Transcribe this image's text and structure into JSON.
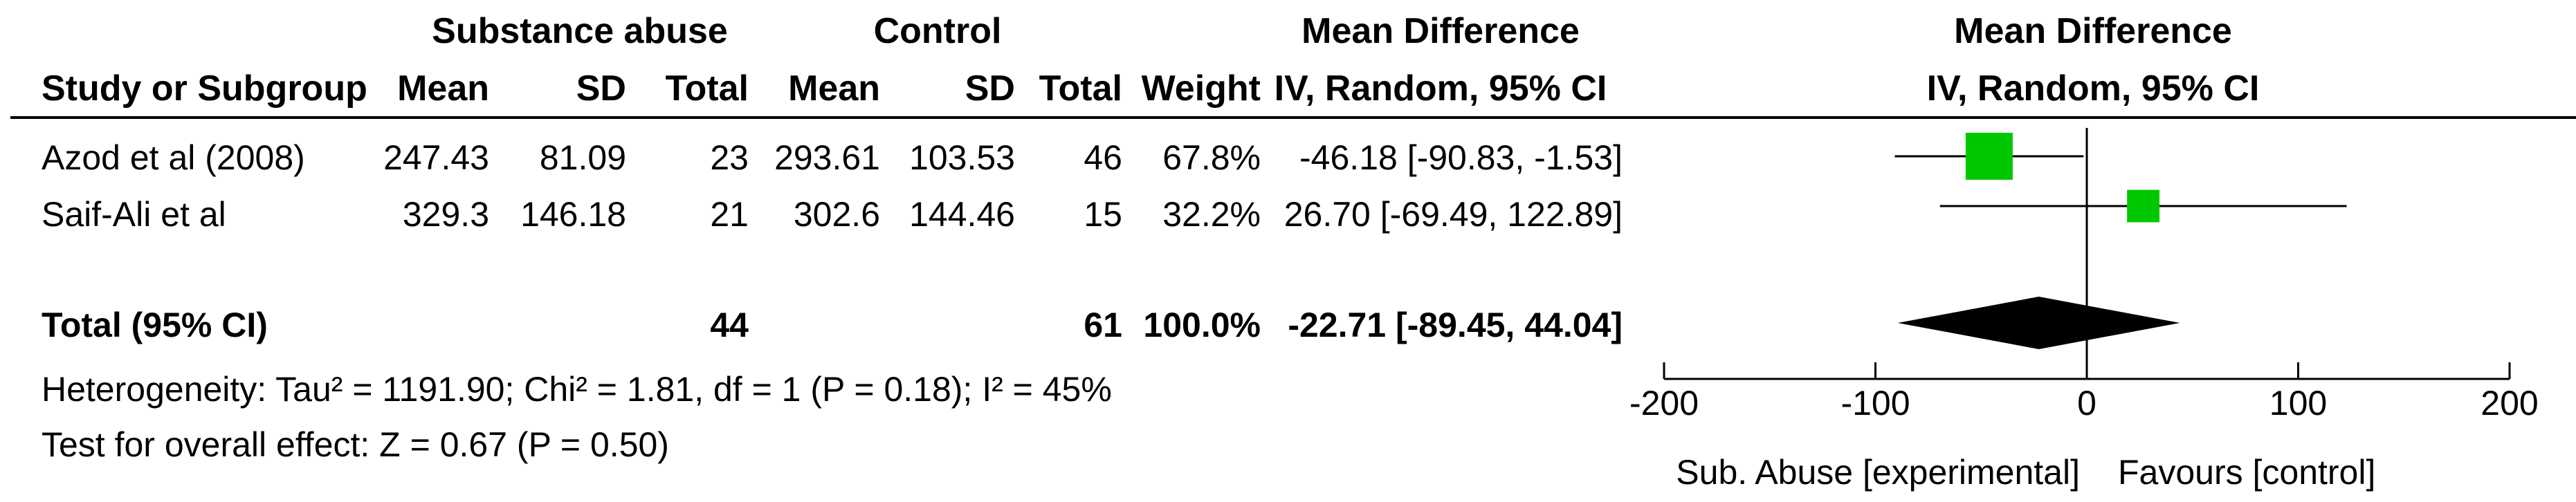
{
  "header": {
    "group1": "Substance abuse",
    "group2": "Control",
    "effect_title": "Mean Difference",
    "study_col": "Study or Subgroup",
    "mean_col": "Mean",
    "sd_col": "SD",
    "total_col": "Total",
    "weight_col": "Weight",
    "method_col": "IV, Random, 95% CI",
    "plot_title": "Mean Difference",
    "plot_method": "IV, Random, 95% CI"
  },
  "studies": [
    {
      "name": "Azod et al (2008)",
      "mean1": "247.43",
      "sd1": "81.09",
      "n1": "23",
      "mean2": "293.61",
      "sd2": "103.53",
      "n2": "46",
      "weight": "67.8%",
      "ci_text": "-46.18 [-90.83, -1.53]"
    },
    {
      "name": "Saif-Ali et al",
      "mean1": "329.3",
      "sd1": "146.18",
      "n1": "21",
      "mean2": "302.6",
      "sd2": "144.46",
      "n2": "15",
      "weight": "32.2%",
      "ci_text": "26.70 [-69.49, 122.89]"
    }
  ],
  "total": {
    "label": "Total (95% CI)",
    "n1": "44",
    "n2": "61",
    "weight": "100.0%",
    "ci_text": "-22.71 [-89.45, 44.04]"
  },
  "heterogeneity": "Heterogeneity: Tau² = 1191.90; Chi² = 1.81, df = 1 (P = 0.18); I² = 45%",
  "overall_effect": "Test for overall effect: Z = 0.67 (P = 0.50)",
  "colors": {
    "square": "#00c800",
    "diamond": "#000000"
  },
  "chart_data": {
    "type": "scatter",
    "subtype": "forest-plot",
    "title": "Mean Difference",
    "subtitle": "IV, Random, 95% CI",
    "xlim": [
      -200,
      200
    ],
    "x_ticks": [
      -200,
      -100,
      0,
      100,
      200
    ],
    "x_tick_labels": [
      "-200",
      "-100",
      "0",
      "100",
      "200"
    ],
    "xlabel_left": "Sub. Abuse [experimental]",
    "xlabel_right": "Favours [control]",
    "studies": [
      {
        "name": "Azod et al (2008)",
        "estimate": -46.18,
        "ci_low": -90.83,
        "ci_high": -1.53,
        "weight": 67.8
      },
      {
        "name": "Saif-Ali et al",
        "estimate": 26.7,
        "ci_low": -69.49,
        "ci_high": 122.89,
        "weight": 32.2
      }
    ],
    "pooled": {
      "estimate": -22.71,
      "ci_low": -89.45,
      "ci_high": 44.04
    }
  }
}
